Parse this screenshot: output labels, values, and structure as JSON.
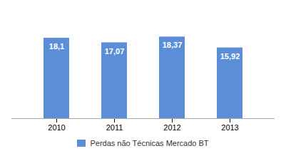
{
  "chart_data": {
    "type": "bar",
    "categories": [
      "2010",
      "2011",
      "2012",
      "2013"
    ],
    "series": [
      {
        "name": "Perdas não Técnicas Mercado BT",
        "color": "#5B8ED6",
        "values": [
          18.1,
          17.07,
          18.37,
          15.92
        ],
        "value_labels": [
          "18,1",
          "17,07",
          "18,37",
          "15,92"
        ]
      }
    ],
    "ylim": [
      0,
      25
    ],
    "data_labels": true,
    "tick_labels": "x",
    "grid": false,
    "legend": "bottom"
  }
}
